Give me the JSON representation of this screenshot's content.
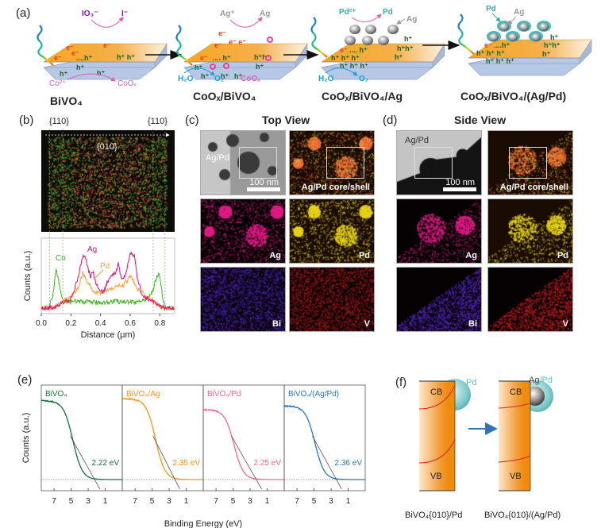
{
  "panels": {
    "a": {
      "label": "(a)",
      "stages": [
        {
          "caption": "BiVO₄",
          "top_in": "IO₃⁻",
          "top_out": "I⁻",
          "bottom_in": "Co²⁺",
          "bottom_out": "CoOₓ"
        },
        {
          "caption": "CoOₓ/BiVO₄",
          "top_in": "Ag⁺",
          "top_out": "Ag",
          "bottom_in": "H₂O",
          "bottom_out": "O₂",
          "side_label": "CoOₓ"
        },
        {
          "caption": "CoOₓ/BiVO₄/Ag",
          "top_in": "Pd²⁺",
          "top_out": "Pd",
          "pointer": "Ag",
          "bottom_in": "H₂O",
          "bottom_out": "O₂"
        },
        {
          "caption": "CoOₓ/BiVO₄/(Ag/Pd)",
          "pointer1": "Pd",
          "pointer2": "Ag"
        }
      ],
      "electron": "e⁻",
      "hole": "h⁺"
    },
    "b": {
      "label": "(b)",
      "facet_left": "{110}",
      "facet_right": "{110}",
      "facet_center": "{010}"
    },
    "c": {
      "label": "(c)",
      "title": "Top View",
      "tiles": [
        "",
        "Ag/Pd core/shell",
        "Ag",
        "Pd",
        "Bi",
        "V"
      ],
      "tem_label": "Ag/Pd",
      "scale": "100 nm"
    },
    "d": {
      "label": "(d)",
      "title": "Side View",
      "tiles": [
        "",
        "Ag/Pd core/shell",
        "Ag",
        "Pd",
        "Bi",
        "V"
      ],
      "tem_label": "Ag/Pd",
      "scale": "100 nm"
    },
    "f": {
      "label": "(f)",
      "left": {
        "cb": "CB",
        "vb": "VB",
        "particle": "Pd",
        "caption": "BiVO₄{010}/Pd"
      },
      "right": {
        "cb": "CB",
        "vb": "VB",
        "particle_a": "Ag",
        "particle_b": "/Pd",
        "caption": "BiVO₄{010}/(Ag/Pd)"
      }
    }
  },
  "colors": {
    "co": "#3cb422",
    "ag": "#d8127f",
    "pd": "#f7a23a",
    "bivo4": "#1a6e3c",
    "bivo4_ag": "#f7941d",
    "bivo4_pd": "#f26b8a",
    "bivo4_agpd": "#2f74b5",
    "slab_top": "#f6a623",
    "slab_side": "#b7c8e6",
    "teal": "#5fbfbf",
    "arrow_blue": "#2f74b5"
  },
  "chart_data": [
    {
      "type": "line",
      "title": "",
      "xlabel": "Distance (μm)",
      "ylabel": "Counts (a.u.)",
      "xlim": [
        0.0,
        0.9
      ],
      "xticks": [
        "0.0",
        "0.2",
        "0.4",
        "0.6",
        "0.8"
      ],
      "xtick_values": [
        0.0,
        0.2,
        0.4,
        0.6,
        0.8
      ],
      "ylim": [
        0,
        1
      ],
      "vlines": [
        0.055,
        0.145,
        0.755,
        0.835
      ],
      "series": [
        {
          "name": "Co",
          "x": [
            0.0,
            0.05,
            0.07,
            0.09,
            0.1,
            0.11,
            0.13,
            0.15,
            0.2,
            0.3,
            0.4,
            0.5,
            0.6,
            0.7,
            0.75,
            0.77,
            0.79,
            0.8,
            0.81,
            0.83,
            0.85,
            0.9
          ],
          "y": [
            0.02,
            0.02,
            0.15,
            0.45,
            0.72,
            0.55,
            0.3,
            0.15,
            0.14,
            0.13,
            0.12,
            0.14,
            0.13,
            0.14,
            0.3,
            0.5,
            0.6,
            0.55,
            0.35,
            0.08,
            0.02,
            0.02
          ]
        },
        {
          "name": "Ag",
          "x": [
            0.0,
            0.1,
            0.15,
            0.2,
            0.25,
            0.28,
            0.3,
            0.33,
            0.35,
            0.38,
            0.42,
            0.45,
            0.5,
            0.52,
            0.55,
            0.58,
            0.6,
            0.63,
            0.65,
            0.68,
            0.72,
            0.76,
            0.8,
            0.85,
            0.9
          ],
          "y": [
            0.02,
            0.04,
            0.12,
            0.18,
            0.55,
            0.9,
            0.85,
            0.55,
            0.62,
            0.35,
            0.3,
            0.5,
            0.62,
            0.75,
            0.48,
            0.7,
            0.95,
            0.88,
            0.5,
            0.25,
            0.18,
            0.12,
            0.05,
            0.02,
            0.02
          ]
        },
        {
          "name": "Pd",
          "x": [
            0.0,
            0.1,
            0.15,
            0.2,
            0.25,
            0.28,
            0.3,
            0.33,
            0.35,
            0.4,
            0.45,
            0.5,
            0.55,
            0.6,
            0.62,
            0.65,
            0.7,
            0.75,
            0.8,
            0.85,
            0.9
          ],
          "y": [
            0.02,
            0.05,
            0.15,
            0.2,
            0.35,
            0.62,
            0.5,
            0.42,
            0.32,
            0.28,
            0.32,
            0.38,
            0.4,
            0.55,
            0.5,
            0.35,
            0.25,
            0.15,
            0.05,
            0.02,
            0.02
          ]
        }
      ],
      "annotations": [
        "Co",
        "Ag",
        "Pd"
      ]
    },
    {
      "type": "line",
      "ylabel": "Counts (a.u.)",
      "xlabel": "Binding Energy (eV)",
      "xlim": [
        8.5,
        -1.0
      ],
      "xticks": [
        "7",
        "5",
        "3",
        "1"
      ],
      "xtick_values": [
        7,
        5,
        3,
        1
      ],
      "subplots": [
        {
          "name": "BiVO₄",
          "gap": "2.22 eV",
          "edge": 4.8,
          "top": 0.88,
          "onset": 2.22
        },
        {
          "name": "BiVO₄/Ag",
          "gap": "2.35 eV",
          "edge": 4.6,
          "top": 0.9,
          "onset": 2.35
        },
        {
          "name": "BiVO₄/Pd",
          "gap": "2.25 eV",
          "edge": 4.9,
          "top": 0.78,
          "onset": 2.25
        },
        {
          "name": "BiVO₄/(Ag/Pd)",
          "gap": "2.36 eV",
          "edge": 4.9,
          "top": 0.82,
          "onset": 2.36
        }
      ]
    }
  ]
}
